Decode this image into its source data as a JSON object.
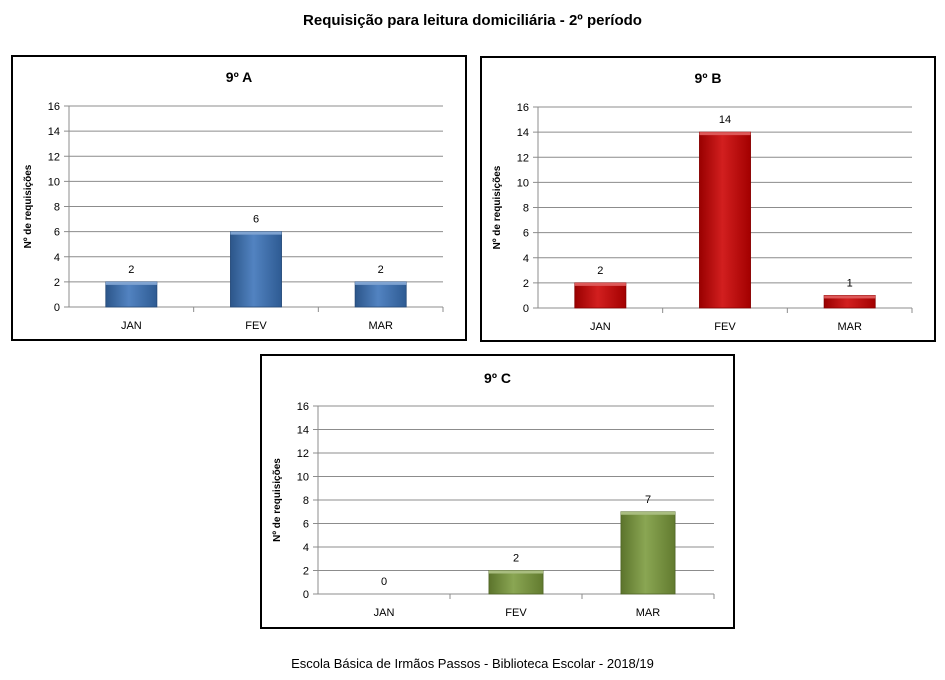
{
  "page": {
    "title": "Requisição para leitura domiciliária - 2º período",
    "footer": "Escola Básica de Irmãos Passos - Biblioteca Escolar  - 2018/19"
  },
  "colors": {
    "blue": "#3a72b8",
    "red": "#cc0000",
    "green": "#7a9a3b",
    "grid": "#8c8c8c"
  },
  "chart_data": [
    {
      "type": "bar",
      "title": "9º A",
      "ylabel": "Nº de requisições",
      "xlabel": "",
      "categories": [
        "JAN",
        "FEV",
        "MAR"
      ],
      "values": [
        2,
        6,
        2
      ],
      "ylim": [
        0,
        16
      ],
      "yticks": [
        0,
        2,
        4,
        6,
        8,
        10,
        12,
        14,
        16
      ],
      "color": "#3a72b8",
      "grid": true,
      "legend": "none"
    },
    {
      "type": "bar",
      "title": "9º B",
      "ylabel": "Nº de requisições",
      "xlabel": "",
      "categories": [
        "JAN",
        "FEV",
        "MAR"
      ],
      "values": [
        2,
        14,
        1
      ],
      "ylim": [
        0,
        16
      ],
      "yticks": [
        0,
        2,
        4,
        6,
        8,
        10,
        12,
        14,
        16
      ],
      "color": "#cc0000",
      "grid": true,
      "legend": "none"
    },
    {
      "type": "bar",
      "title": "9º C",
      "ylabel": "Nº de requisições",
      "xlabel": "",
      "categories": [
        "JAN",
        "FEV",
        "MAR"
      ],
      "values": [
        0,
        2,
        7
      ],
      "ylim": [
        0,
        16
      ],
      "yticks": [
        0,
        2,
        4,
        6,
        8,
        10,
        12,
        14,
        16
      ],
      "color": "#7a9a3b",
      "grid": true,
      "legend": "none"
    }
  ]
}
